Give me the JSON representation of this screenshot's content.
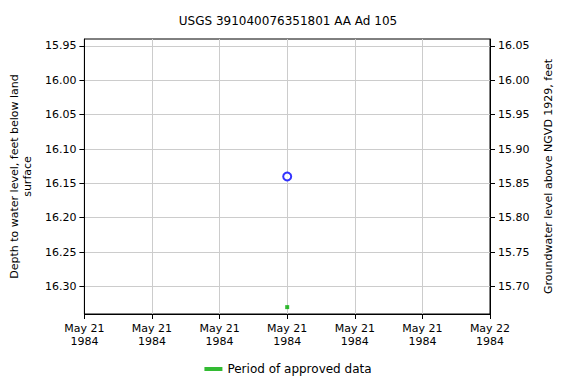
{
  "chart_data": {
    "type": "scatter",
    "title": "USGS 391040076351801 AA Ad 105",
    "ylabel": "Depth to water level, feet below land\nsurface",
    "y2label": "Groundwater level above NGVD 1929, feet",
    "categories": [
      "May 21\n1984",
      "May 21\n1984",
      "May 21\n1984",
      "May 21\n1984",
      "May 21\n1984",
      "May 21\n1984",
      "May 22\n1984"
    ],
    "series": [
      {
        "color": "#0000ff",
        "marker": "open circle",
        "values": [
          null,
          null,
          null,
          16.14,
          null,
          null,
          null
        ]
      },
      {
        "name": "Period of approved data",
        "color": "#00aa00",
        "marker": "square",
        "values": [
          null,
          null,
          null,
          16.33,
          null,
          null,
          null
        ]
      }
    ],
    "ylim": [
      16.34,
      15.94
    ],
    "yticks": [
      15.95,
      {
        "value": 16,
        "label": "16.00"
      },
      16.05,
      {
        "value": 16.1,
        "label": "16.10"
      },
      16.15,
      {
        "value": 16.2,
        "label": "16.20"
      },
      16.25,
      {
        "value": 16.3,
        "label": "16.30"
      }
    ],
    "y2lim": [
      15.66,
      16.06
    ],
    "y2ticks": [
      {
        "value": 15.7,
        "label": "15.70"
      },
      15.75,
      {
        "value": 15.8,
        "label": "15.80"
      },
      15.85,
      {
        "value": 15.9,
        "label": "15.90"
      },
      15.95,
      {
        "value": 16,
        "label": "16.00"
      },
      16.05
    ],
    "grid": true,
    "legend": "bottom"
  }
}
